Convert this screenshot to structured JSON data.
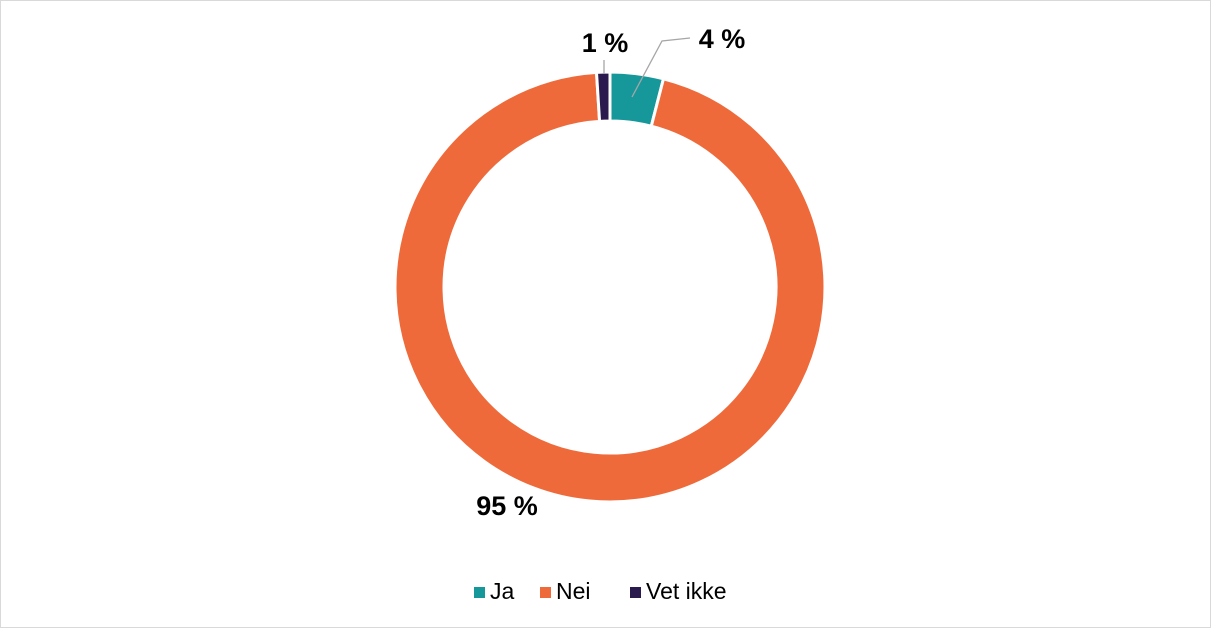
{
  "chart_data": {
    "type": "donut",
    "categories": [
      "Ja",
      "Nei",
      "Vet ikke"
    ],
    "values": [
      4,
      95,
      1
    ],
    "value_labels": [
      "4 %",
      "95 %",
      "1 %"
    ],
    "colors": [
      "#16989b",
      "#ef6a3a",
      "#2b1a4d"
    ],
    "legend": "bottom"
  }
}
